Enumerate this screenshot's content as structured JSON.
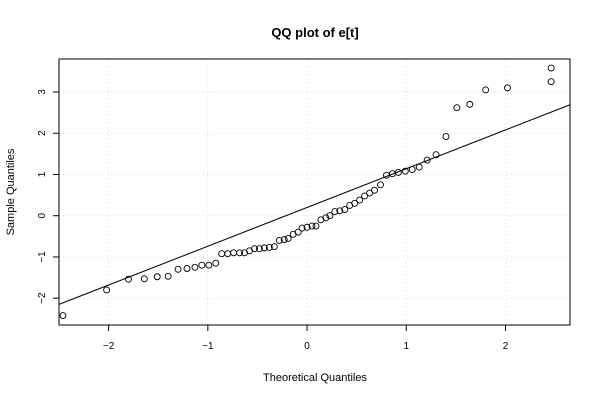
{
  "chart_data": {
    "type": "scatter",
    "title": "QQ plot of e[t]",
    "xlabel": "Theoretical Quantiles",
    "ylabel": "Sample Quantiles",
    "xlim": [
      -2.5,
      2.65
    ],
    "ylim": [
      -2.65,
      3.8
    ],
    "xticks": [
      -2,
      -1,
      0,
      1,
      2
    ],
    "yticks": [
      -2,
      -1,
      0,
      1,
      2,
      3
    ],
    "grid": true,
    "reference_line": {
      "intercept": 0.2,
      "slope": 0.94
    },
    "points": [
      [
        -2.46,
        -2.42
      ],
      [
        -2.02,
        -1.8
      ],
      [
        -1.8,
        -1.54
      ],
      [
        -1.64,
        -1.53
      ],
      [
        -1.51,
        -1.48
      ],
      [
        -1.4,
        -1.47
      ],
      [
        -1.3,
        -1.3
      ],
      [
        -1.21,
        -1.28
      ],
      [
        -1.13,
        -1.25
      ],
      [
        -1.06,
        -1.2
      ],
      [
        -0.99,
        -1.2
      ],
      [
        -0.92,
        -1.15
      ],
      [
        -0.86,
        -0.92
      ],
      [
        -0.8,
        -0.92
      ],
      [
        -0.74,
        -0.9
      ],
      [
        -0.68,
        -0.9
      ],
      [
        -0.63,
        -0.9
      ],
      [
        -0.58,
        -0.85
      ],
      [
        -0.53,
        -0.8
      ],
      [
        -0.48,
        -0.8
      ],
      [
        -0.43,
        -0.78
      ],
      [
        -0.38,
        -0.77
      ],
      [
        -0.33,
        -0.75
      ],
      [
        -0.28,
        -0.6
      ],
      [
        -0.23,
        -0.58
      ],
      [
        -0.19,
        -0.55
      ],
      [
        -0.14,
        -0.45
      ],
      [
        -0.09,
        -0.4
      ],
      [
        -0.05,
        -0.3
      ],
      [
        0.0,
        -0.28
      ],
      [
        0.05,
        -0.25
      ],
      [
        0.09,
        -0.25
      ],
      [
        0.14,
        -0.1
      ],
      [
        0.19,
        -0.05
      ],
      [
        0.23,
        0.0
      ],
      [
        0.28,
        0.1
      ],
      [
        0.33,
        0.12
      ],
      [
        0.38,
        0.15
      ],
      [
        0.43,
        0.25
      ],
      [
        0.48,
        0.3
      ],
      [
        0.53,
        0.38
      ],
      [
        0.58,
        0.48
      ],
      [
        0.63,
        0.55
      ],
      [
        0.68,
        0.62
      ],
      [
        0.74,
        0.75
      ],
      [
        0.8,
        0.98
      ],
      [
        0.86,
        1.02
      ],
      [
        0.92,
        1.05
      ],
      [
        0.99,
        1.08
      ],
      [
        1.06,
        1.12
      ],
      [
        1.13,
        1.18
      ],
      [
        1.21,
        1.35
      ],
      [
        1.3,
        1.48
      ],
      [
        1.4,
        1.92
      ],
      [
        1.51,
        2.62
      ],
      [
        1.64,
        2.7
      ],
      [
        1.8,
        3.05
      ],
      [
        2.02,
        3.1
      ],
      [
        2.46,
        3.25
      ],
      [
        2.46,
        3.58
      ]
    ]
  }
}
